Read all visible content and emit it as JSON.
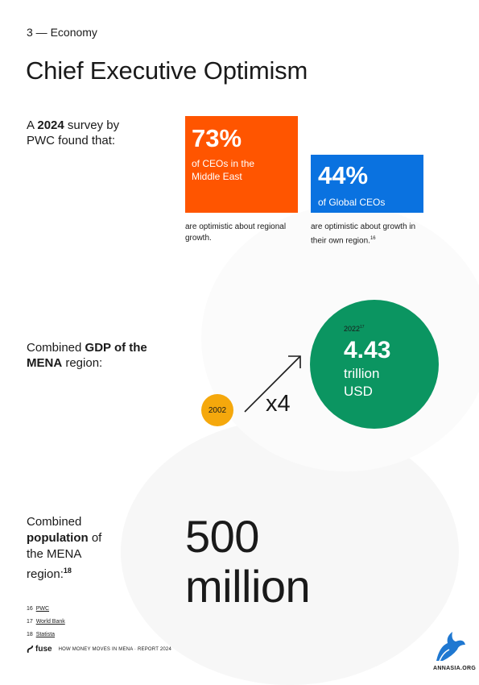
{
  "section": "3 — Economy",
  "title": "Chief Executive Optimism",
  "survey": {
    "lead_pre": "A ",
    "lead_year": "2024",
    "lead_post": " survey by PWC found that:",
    "mena": {
      "value": "73%",
      "desc": "of CEOs in the Middle East",
      "note": "are optimistic about regional growth.",
      "color": "#ff5500"
    },
    "global": {
      "value": "44%",
      "desc": "of Global CEOs",
      "note_text": "are optimistic about growth in their own region.",
      "note_ref": "16",
      "color": "#0a72e0"
    }
  },
  "gdp": {
    "lead_pre": "Combined ",
    "lead_bold": "GDP of the MENA",
    "lead_post": " region:",
    "start_year": "2002",
    "start_color": "#f5a80c",
    "multiplier": "x4",
    "end_year": "2022",
    "end_ref": "17",
    "value": "4.43",
    "unit_line1": "trillion",
    "unit_line2": "USD",
    "end_color": "#0b9561"
  },
  "population": {
    "lead_pre": "Combined ",
    "lead_bold": "population",
    "lead_post": " of the MENA region:",
    "lead_ref": "18",
    "value_line1": "500",
    "value_line2": "million"
  },
  "footnotes": [
    {
      "num": "16",
      "source": "PWC"
    },
    {
      "num": "17",
      "source": "World Bank"
    },
    {
      "num": "18",
      "source": "Statista"
    }
  ],
  "footer": {
    "brand": "fuse",
    "text": "HOW MONEY MOVES IN MENA · REPORT 2024"
  },
  "watermark": "ANNASIA.ORG"
}
